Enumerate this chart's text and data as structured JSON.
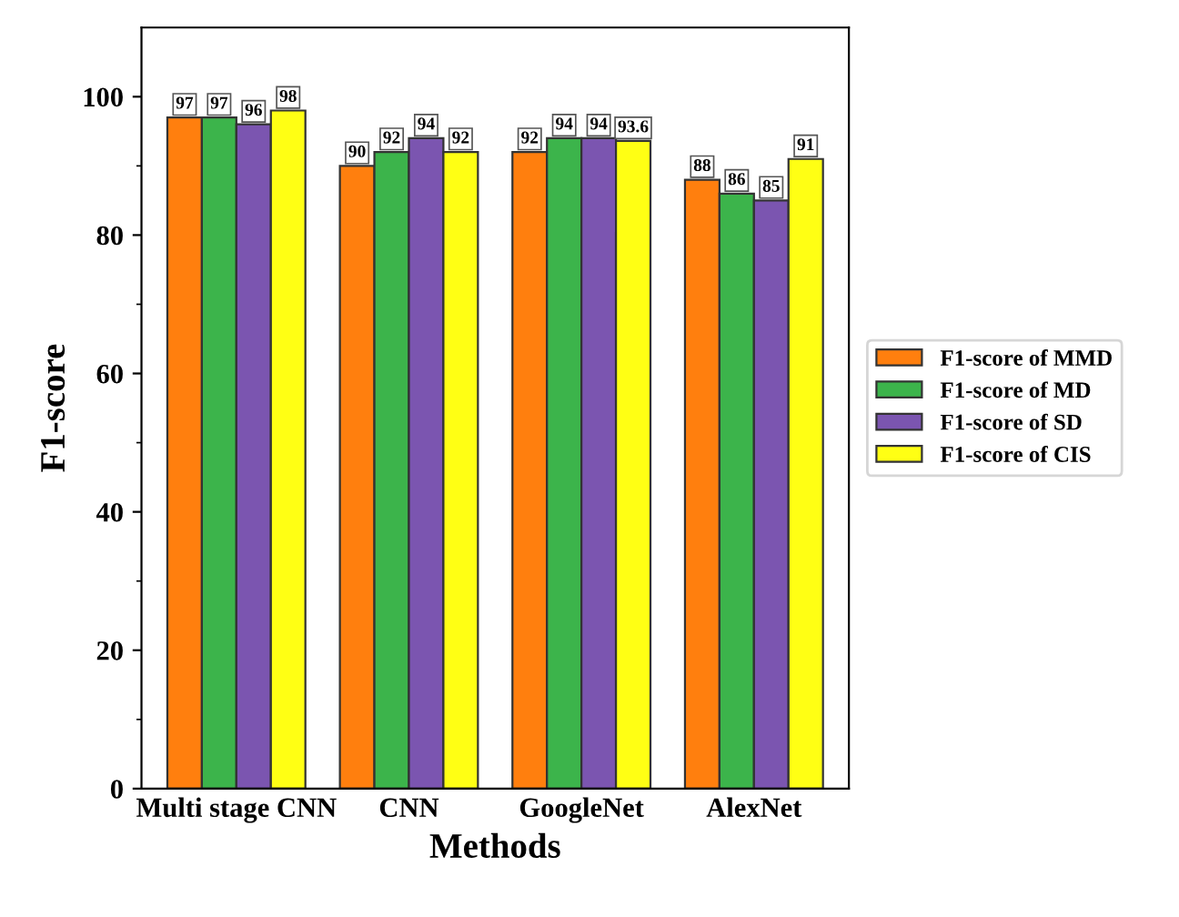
{
  "chart_data": {
    "type": "bar",
    "xlabel": "Methods",
    "ylabel": "F1-score",
    "categories": [
      "Multi stage CNN",
      "CNN",
      "GoogleNet",
      "AlexNet"
    ],
    "series": [
      {
        "name": "F1-score of MMD",
        "color": "#ff7f0e",
        "values": [
          97,
          90,
          92,
          88
        ]
      },
      {
        "name": "F1-score of MD",
        "color": "#3cb44b",
        "values": [
          97,
          92,
          94,
          86
        ]
      },
      {
        "name": "F1-score of SD",
        "color": "#7b55b0",
        "values": [
          96,
          94,
          94,
          85
        ]
      },
      {
        "name": "F1-score of CIS",
        "color": "#ffff14",
        "values": [
          98,
          92,
          93.6,
          91
        ]
      }
    ],
    "ylim": [
      0,
      110
    ],
    "yticks": [
      0,
      20,
      40,
      60,
      80,
      100
    ],
    "data_labels": true,
    "grid": false,
    "legend": "right"
  }
}
